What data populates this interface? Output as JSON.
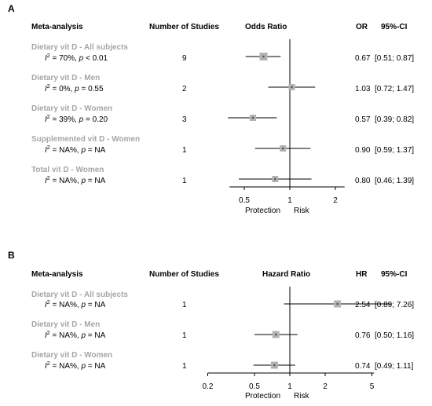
{
  "panels": [
    {
      "letter": "A",
      "headers": {
        "analysis": "Meta-analysis",
        "studies": "Number of Studies",
        "plot": "Odds Ratio",
        "estimate": "OR",
        "ci": "95%-CI"
      },
      "rows": [
        {
          "label": "Dietary vit D - All subjects",
          "i2": "70%",
          "p": "< 0.01",
          "studies": "9",
          "est": "0.67",
          "ci": "[0.51; 0.87]"
        },
        {
          "label": "Dietary vit D - Men",
          "i2": "0%",
          "p": "= 0.55",
          "studies": "2",
          "est": "1.03",
          "ci": "[0.72; 1.47]"
        },
        {
          "label": "Dietary vit D - Women",
          "i2": "39%",
          "p": "= 0.20",
          "studies": "3",
          "est": "0.57",
          "ci": "[0.39; 0.82]"
        },
        {
          "label": "Supplemented vit D - Women",
          "i2": "NA%",
          "p": "= NA",
          "studies": "1",
          "est": "0.90",
          "ci": "[0.59; 1.37]"
        },
        {
          "label": "Total vit D - Women",
          "i2": "NA%",
          "p": "= NA",
          "studies": "1",
          "est": "0.80",
          "ci": "[0.46; 1.39]"
        }
      ],
      "axis_left_label": "Protection",
      "axis_right_label": "Risk"
    },
    {
      "letter": "B",
      "headers": {
        "analysis": "Meta-analysis",
        "studies": "Number of Studies",
        "plot": "Hazard Ratio",
        "estimate": "HR",
        "ci": "95%-CI"
      },
      "rows": [
        {
          "label": "Dietary vit D - All subjects",
          "i2": "NA%",
          "p": "= NA",
          "studies": "1",
          "est": "2.54",
          "ci": "[0.89; 7.26]"
        },
        {
          "label": "Dietary vit D - Men",
          "i2": "NA%",
          "p": "= NA",
          "studies": "1",
          "est": "0.76",
          "ci": "[0.50; 1.16]"
        },
        {
          "label": "Dietary vit D - Women",
          "i2": "NA%",
          "p": "= NA",
          "studies": "1",
          "est": "0.74",
          "ci": "[0.49; 1.11]"
        }
      ],
      "axis_left_label": "Protection",
      "axis_right_label": "Risk"
    }
  ],
  "i2_symbol": "I",
  "i2_exponent": "2",
  "p_symbol": "p",
  "chart_data": [
    {
      "type": "forest",
      "scale": "log",
      "reference_line": 1,
      "xlim": [
        0.4,
        2.3
      ],
      "xticks": [
        "0.5",
        "1",
        "2"
      ],
      "categories": [
        "Dietary vit D - All subjects",
        "Dietary vit D - Men",
        "Dietary vit D - Women",
        "Supplemented vit D - Women",
        "Total vit D - Women"
      ],
      "estimate": [
        0.67,
        1.03,
        0.57,
        0.9,
        0.8
      ],
      "lower": [
        0.51,
        0.72,
        0.39,
        0.59,
        0.46
      ],
      "upper": [
        0.87,
        1.47,
        0.82,
        1.37,
        1.39
      ],
      "weight": [
        1,
        0.9,
        0.9,
        0.9,
        0.9
      ]
    },
    {
      "type": "forest",
      "scale": "log",
      "reference_line": 1,
      "xlim": [
        0.2,
        5.2
      ],
      "xticks": [
        "0.2",
        "0.5",
        "1",
        "2",
        "5"
      ],
      "categories": [
        "Dietary vit D - All subjects",
        "Dietary vit D - Men",
        "Dietary vit D - Women"
      ],
      "estimate": [
        2.54,
        0.76,
        0.74
      ],
      "lower": [
        0.89,
        0.5,
        0.49
      ],
      "upper": [
        7.26,
        1.16,
        1.11
      ],
      "weight": [
        1,
        1,
        1
      ]
    }
  ]
}
